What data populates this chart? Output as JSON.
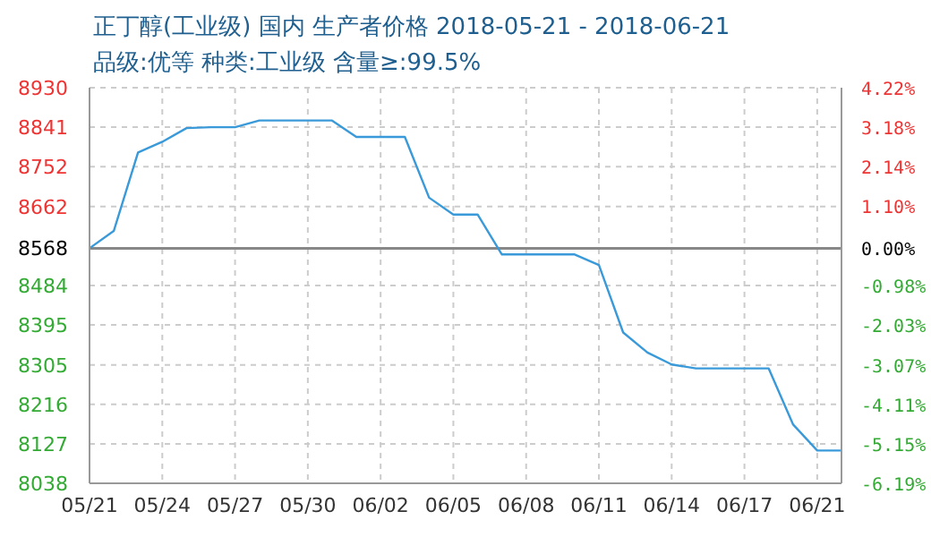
{
  "chart_data": {
    "type": "line",
    "title": "正丁醇(工业级) 国内 生产者价格 2018-05-21 - 2018-06-21",
    "subtitle": "品级:优等 种类:工业级 含量≥:99.5%",
    "categories": [
      "05/21",
      null,
      null,
      "05/24",
      null,
      null,
      "05/27",
      null,
      null,
      "05/30",
      null,
      null,
      "06/02",
      null,
      null,
      "06/05",
      null,
      null,
      "06/08",
      null,
      null,
      "06/11",
      null,
      null,
      "06/14",
      null,
      null,
      "06/17",
      null,
      null,
      "06/21",
      null
    ],
    "series": [
      {
        "color": "#3a9ad9",
        "values": [
          8568,
          8607,
          8784,
          8808,
          8839,
          8841,
          8841,
          8856,
          8856,
          8856,
          8856,
          8819,
          8819,
          8819,
          8682,
          8644,
          8644,
          8554,
          8554,
          8554,
          8554,
          8530,
          8378,
          8333,
          8306,
          8297,
          8297,
          8297,
          8297,
          8171,
          8112,
          8112
        ]
      }
    ],
    "ylim": [
      8038,
      8930
    ],
    "yticks": [
      8038,
      8127,
      8216,
      8305,
      8395,
      8484,
      8568,
      8662,
      8752,
      8841,
      8930
    ],
    "y2lim": [
      -6.19,
      4.22
    ],
    "y2ticks": [
      {
        "value": -6.19,
        "label": "-6.19%"
      },
      {
        "value": -5.15,
        "label": "-5.15%"
      },
      {
        "value": -4.11,
        "label": "-4.11%"
      },
      {
        "value": -3.07,
        "label": "-3.07%"
      },
      {
        "value": -2.03,
        "label": "-2.03%"
      },
      {
        "value": -0.98,
        "label": "-0.98%"
      },
      {
        "value": 0,
        "label": "0.00%"
      },
      {
        "value": 1.1,
        "label": "1.10%"
      },
      {
        "value": 2.14,
        "label": "2.14%"
      },
      {
        "value": 3.18,
        "label": "3.18%"
      },
      {
        "value": 4.22,
        "label": "4.22%"
      }
    ],
    "ref_lines": [
      {
        "axis": "y",
        "value": 8568,
        "color": "#888888"
      }
    ],
    "grid": true,
    "marker": "none",
    "line_style": "solid"
  }
}
